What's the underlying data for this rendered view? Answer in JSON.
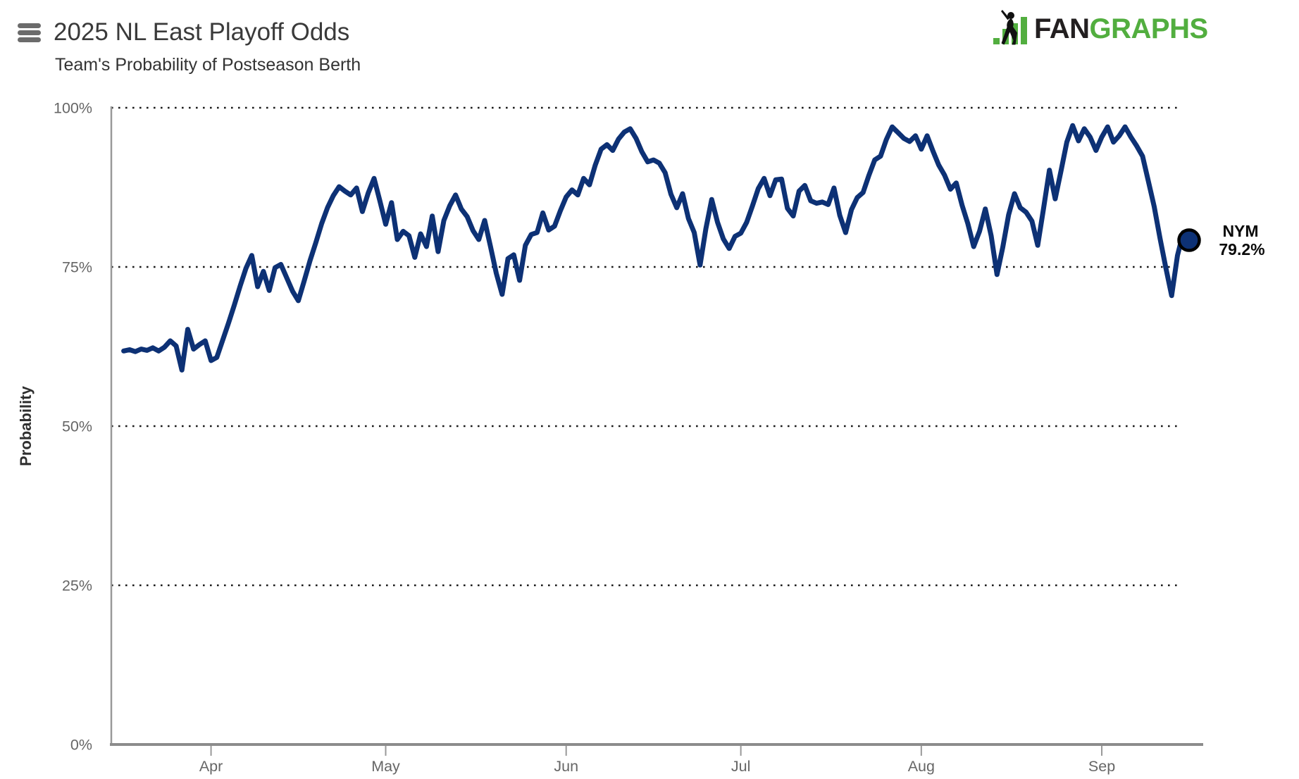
{
  "header": {
    "title": "2025 NL East Playoff Odds",
    "subtitle": "Team's Probability of Postseason Berth",
    "logo": {
      "text_black": "FAN",
      "text_green": "GRAPHS",
      "brand_green": "#52ae3f",
      "brand_black": "#231f20",
      "icon": "fangraphs-batter-bars-logo"
    },
    "menu_icon": "hamburger-menu-icon",
    "menu_color": "#6b6b6b"
  },
  "chart_data": {
    "type": "line",
    "title": "2025 NL East Playoff Odds",
    "subtitle": "Team's Probability of Postseason Berth",
    "ylabel": "Probability",
    "xlabel": "",
    "ylim": [
      0,
      100
    ],
    "grid": "dotted horizontal lines at 25%, 50%, 75%, 100%",
    "legend_position": "end-of-line label",
    "line_color": "#0d3175",
    "axis_color": "#999999",
    "tick_label_color": "#666666",
    "gridline_color": "#1a1a1a",
    "y_ticks": [
      {
        "label": "0%",
        "value": 0
      },
      {
        "label": "25%",
        "value": 25
      },
      {
        "label": "50%",
        "value": 50
      },
      {
        "label": "75%",
        "value": 75
      },
      {
        "label": "100%",
        "value": 100
      }
    ],
    "x_ticks": [
      {
        "label": "Apr",
        "day_index": 15
      },
      {
        "label": "May",
        "day_index": 45
      },
      {
        "label": "Jun",
        "day_index": 76
      },
      {
        "label": "Jul",
        "day_index": 106
      },
      {
        "label": "Aug",
        "day_index": 137
      },
      {
        "label": "Sep",
        "day_index": 168
      }
    ],
    "series": [
      {
        "name": "NYM",
        "color": "#0d3175",
        "start_date": "3/17",
        "end_date": "9/16",
        "cadence": "daily",
        "final_value": 79.2,
        "end_label": {
          "team": "NYM",
          "value": "79.2%"
        },
        "values": [
          61.8,
          62.0,
          61.7,
          62.1,
          61.9,
          62.3,
          61.8,
          62.4,
          63.4,
          62.6,
          58.8,
          65.2,
          62.1,
          62.8,
          63.4,
          60.3,
          60.8,
          63.5,
          66.2,
          69.0,
          72.0,
          74.8,
          76.8,
          71.9,
          74.3,
          71.3,
          74.9,
          75.4,
          73.3,
          71.2,
          69.7,
          72.8,
          76.0,
          78.8,
          81.8,
          84.3,
          86.2,
          87.6,
          86.9,
          86.3,
          87.4,
          83.7,
          86.6,
          88.9,
          85.4,
          81.7,
          85.1,
          79.3,
          80.6,
          79.9,
          76.5,
          80.2,
          78.2,
          83.0,
          77.4,
          82.3,
          84.6,
          86.3,
          84.1,
          82.9,
          80.7,
          79.3,
          82.3,
          78.2,
          74.0,
          70.7,
          76.3,
          76.9,
          72.9,
          78.4,
          80.1,
          80.4,
          83.5,
          80.8,
          81.4,
          83.8,
          86.0,
          87.1,
          86.3,
          88.9,
          87.9,
          91.0,
          93.5,
          94.2,
          93.3,
          95.1,
          96.2,
          96.7,
          95.2,
          93.1,
          91.5,
          91.8,
          91.3,
          89.8,
          86.4,
          84.3,
          86.5,
          82.6,
          80.4,
          75.3,
          81.0,
          85.6,
          82.0,
          79.4,
          77.9,
          79.8,
          80.3,
          82.0,
          84.6,
          87.3,
          88.9,
          86.2,
          88.7,
          88.8,
          84.2,
          83.0,
          86.9,
          87.8,
          85.4,
          85.0,
          85.2,
          84.8,
          87.4,
          83.1,
          80.4,
          84.0,
          85.9,
          86.7,
          89.4,
          91.8,
          92.4,
          95.0,
          97.0,
          96.1,
          95.2,
          94.7,
          95.6,
          93.5,
          95.6,
          93.2,
          91.0,
          89.4,
          87.2,
          88.2,
          84.7,
          81.8,
          78.2,
          80.6,
          84.1,
          79.9,
          73.8,
          78.1,
          83.2,
          86.5,
          84.3,
          83.6,
          82.2,
          78.4,
          84.2,
          90.2,
          85.7,
          90.1,
          94.6,
          97.2,
          94.8,
          96.7,
          95.4,
          93.3,
          95.4,
          97.0,
          94.6,
          95.6,
          97.0,
          95.4,
          94.0,
          92.4,
          88.5,
          84.5,
          79.5,
          74.9,
          70.5,
          76.8,
          80.4,
          79.2
        ]
      }
    ]
  }
}
